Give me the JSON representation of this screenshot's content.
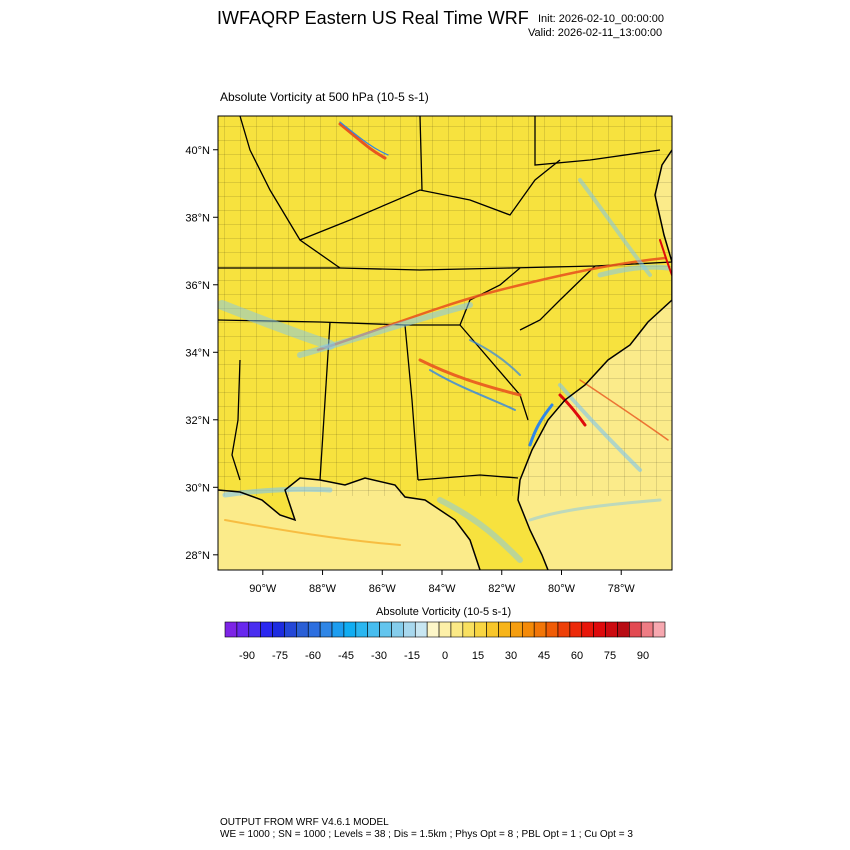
{
  "header": {
    "title": "IWFAQRP Eastern US Real Time WRF",
    "init": "Init: 2026-02-10_00:00:00",
    "valid": "Valid: 2026-02-11_13:00:00"
  },
  "field_title": "Absolute Vorticity at 500 hPa   (10-5 s-1)",
  "map": {
    "lat_labels": [
      "40°N",
      "38°N",
      "36°N",
      "34°N",
      "32°N",
      "30°N",
      "28°N"
    ],
    "lat_values": [
      40,
      38,
      36,
      34,
      32,
      30,
      28
    ],
    "lon_labels": [
      "90°W",
      "88°W",
      "86°W",
      "84°W",
      "82°W",
      "80°W",
      "78°W"
    ],
    "lon_values": [
      -90,
      -88,
      -86,
      -84,
      -82,
      -80,
      -78
    ],
    "lat_range": [
      27.55,
      41.0
    ],
    "lon_range": [
      -91.5,
      -76.3
    ],
    "colors": {
      "land": "#f7e23e",
      "ocean": "#fbeb8a",
      "positive_band": "#e8561e",
      "negative_band": "#7fc7ee"
    }
  },
  "colorbar": {
    "title": "Absolute Vorticity  (10-5 s-1)",
    "tick_labels": [
      "-90",
      "-75",
      "-60",
      "-45",
      "-30",
      "-15",
      "0",
      "15",
      "30",
      "45",
      "60",
      "75",
      "90"
    ],
    "tick_values": [
      -90,
      -75,
      -60,
      -45,
      -30,
      -15,
      0,
      15,
      30,
      45,
      60,
      75,
      90
    ],
    "range": [
      -100,
      100
    ],
    "step": 5,
    "colors": [
      "#7d24e6",
      "#6828ee",
      "#4a2ef0",
      "#2a27f0",
      "#1d2ce0",
      "#2447d8",
      "#2a5fd6",
      "#2d6fe0",
      "#2f86e6",
      "#1c9df0",
      "#10adf2",
      "#2ab6f0",
      "#47bdef",
      "#63c5ee",
      "#85cdec",
      "#a8d8ee",
      "#c8e6f2",
      "#fdf6c8",
      "#fdf0a8",
      "#fbe986",
      "#f9e060",
      "#f8d542",
      "#f8c62a",
      "#f7b41a",
      "#f59e10",
      "#f48a08",
      "#f27608",
      "#f05c06",
      "#ee4008",
      "#ec2a0a",
      "#e8160a",
      "#de0a0c",
      "#cc0a10",
      "#b80c14",
      "#e24a52",
      "#ee7c84",
      "#f7a8b0"
    ]
  },
  "footer": {
    "line1": "OUTPUT FROM WRF V4.6.1 MODEL",
    "line2": "WE = 1000 ; SN = 1000 ; Levels = 38 ; Dis = 1.5km ; Phys Opt = 8 ; PBL Opt = 1 ; Cu Opt = 3"
  }
}
